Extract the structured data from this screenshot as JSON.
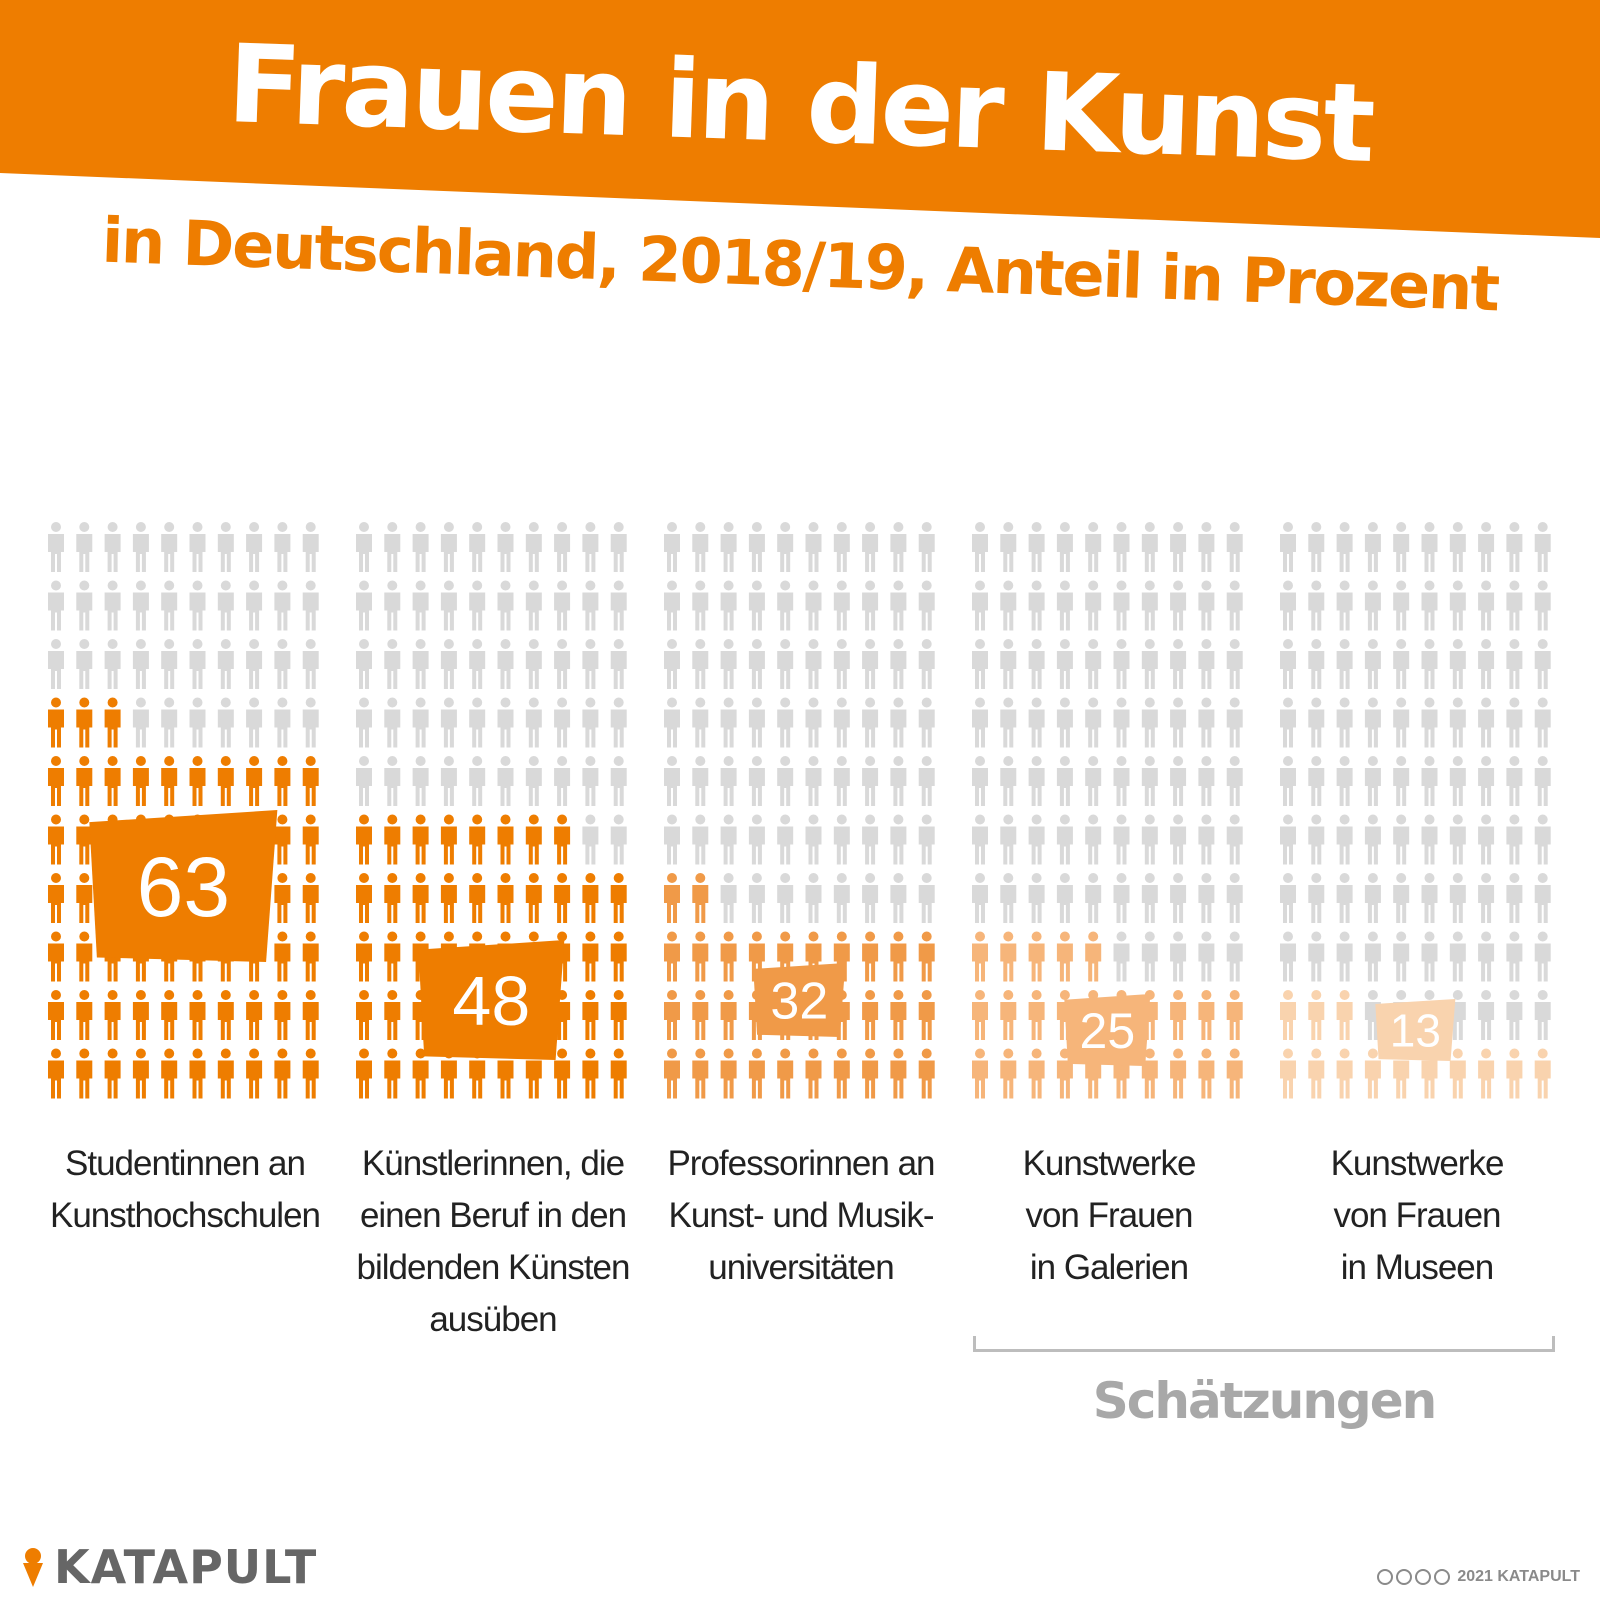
{
  "header": {
    "title": "Frauen in der Kunst",
    "subtitle": "in Deutschland, 2018/19, Anteil in Prozent"
  },
  "colors": {
    "accent": "#ee7d00",
    "inactive": "#d9d9d9"
  },
  "chart_data": {
    "type": "pictogram",
    "unit": "Prozent",
    "categories": [
      "Studentinnen an Kunsthochschulen",
      "Künstlerinnen, die einen Beruf in den bildenden Künsten ausüben",
      "Professorinnen an Kunst- und Musikuniversitäten",
      "Kunstwerke von Frauen in Galerien",
      "Kunstwerke von Frauen in Museen"
    ],
    "values": [
      63,
      48,
      32,
      25,
      13
    ],
    "value_labels": [
      "63",
      "48",
      "32",
      "25",
      "13"
    ],
    "series_colors": [
      "#ee7d00",
      "#ee7d00",
      "#f09a48",
      "#f6b57a",
      "#f9d3ae"
    ],
    "label_lines": [
      [
        "Studentinnen an",
        "Kunsthochschulen"
      ],
      [
        "Künstlerinnen, die",
        "einen Beruf in den",
        "bildenden Künsten",
        "ausüben"
      ],
      [
        "Professorinnen an",
        "Kunst- und Musik-",
        "universitäten"
      ],
      [
        "Kunstwerke",
        "von Frauen",
        "in Galerien"
      ],
      [
        "Kunstwerke",
        "von Frauen",
        "in Museen"
      ]
    ],
    "estimated": [
      false,
      false,
      false,
      true,
      true
    ],
    "ylim": [
      0,
      100
    ]
  },
  "estimates": {
    "label": "Schätzungen"
  },
  "footer": {
    "logo_text": "KATAPULT",
    "copyright": "2021 KATAPULT"
  }
}
